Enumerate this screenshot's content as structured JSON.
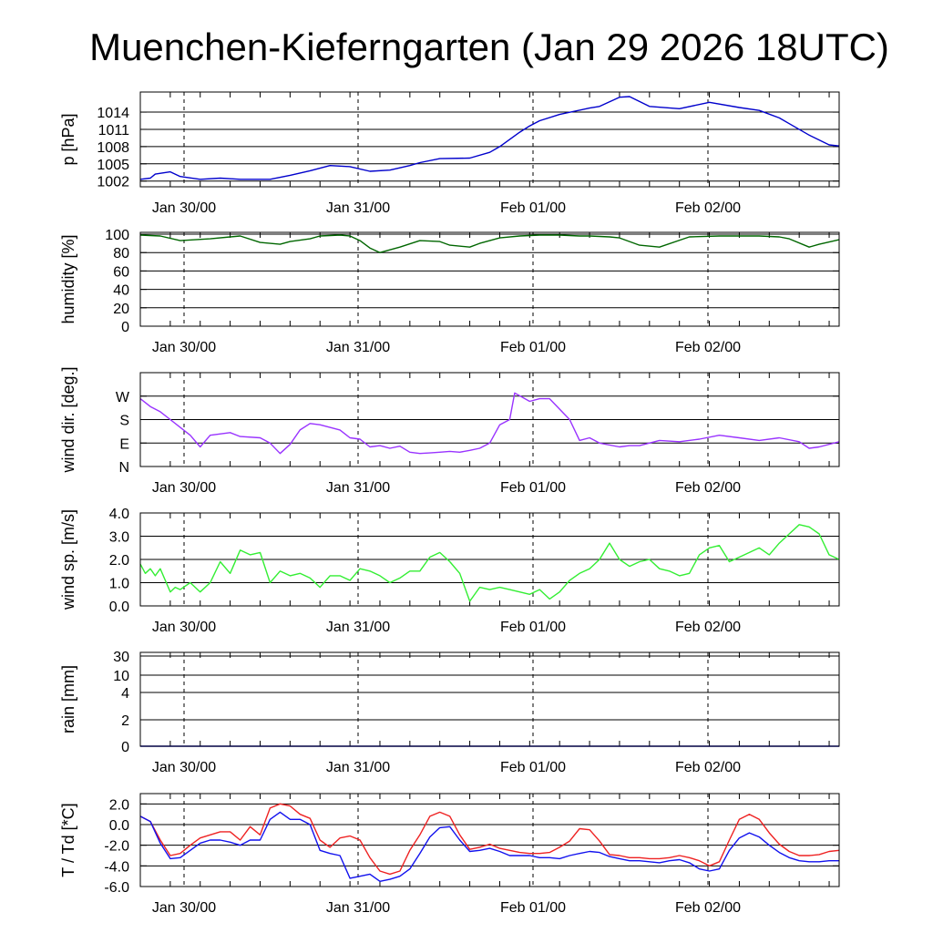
{
  "title": "Muenchen-Kieferngarten (Jan 29 2026 18UTC)",
  "x_tick_labels": [
    "Jan 30/00",
    "Jan 31/00",
    "Feb 01/00",
    "Feb 02/00"
  ],
  "chart_data": [
    {
      "id": "pressure",
      "type": "line",
      "ylabel": "p [hPa]",
      "ylim": [
        1001,
        1017.5
      ],
      "yticks": [
        1002,
        1005,
        1008,
        1011,
        1014
      ],
      "ytick_labels": [
        "1002",
        "1005",
        "1008",
        "1011",
        "1014"
      ],
      "series": [
        {
          "name": "pressure",
          "color": "#0000cc",
          "x": [
            0,
            2,
            3,
            6,
            8,
            12,
            16,
            20,
            26,
            30,
            34,
            38,
            42,
            46,
            50,
            54,
            56,
            60,
            66,
            70,
            72,
            76,
            78,
            80,
            84,
            90,
            92,
            96,
            98,
            102,
            108,
            114,
            120,
            124,
            128,
            130,
            134,
            138,
            140
          ],
          "values": [
            1002.3,
            1002.5,
            1003.2,
            1003.6,
            1002.8,
            1002.3,
            1002.5,
            1002.3,
            1002.3,
            1003.0,
            1003.8,
            1004.7,
            1004.5,
            1003.7,
            1003.9,
            1004.7,
            1005.2,
            1005.9,
            1006.0,
            1007.0,
            1008.0,
            1010.5,
            1011.6,
            1012.5,
            1013.6,
            1014.7,
            1015.0,
            1016.6,
            1016.7,
            1015.0,
            1014.6,
            1015.7,
            1014.8,
            1014.3,
            1013.0,
            1012.0,
            1010.0,
            1008.3,
            1008.1
          ]
        }
      ]
    },
    {
      "id": "humidity",
      "type": "line",
      "ylabel": "humidity [%]",
      "ylim": [
        0,
        102
      ],
      "yticks": [
        0,
        20,
        40,
        60,
        80,
        100
      ],
      "ytick_labels": [
        "0",
        "20",
        "40",
        "60",
        "80",
        "100"
      ],
      "series": [
        {
          "name": "humidity",
          "color": "#006600",
          "x": [
            0,
            4,
            8,
            14,
            18,
            20,
            24,
            28,
            30,
            34,
            36,
            40,
            42,
            44,
            46,
            48,
            52,
            56,
            60,
            62,
            66,
            68,
            72,
            76,
            80,
            84,
            88,
            90,
            94,
            96,
            100,
            104,
            110,
            116,
            120,
            124,
            128,
            130,
            134,
            136,
            140
          ],
          "values": [
            99,
            98,
            93,
            95,
            97,
            98,
            91,
            89,
            92,
            95,
            98,
            99,
            98,
            93,
            85,
            80,
            86,
            93,
            92,
            88,
            86,
            90,
            96,
            98,
            99,
            99,
            98,
            98,
            97,
            96,
            88,
            86,
            97,
            98,
            98,
            98,
            97,
            95,
            86,
            89,
            94
          ]
        }
      ]
    },
    {
      "id": "wind_direction",
      "type": "line",
      "ylabel": "wind dir. [deg.]",
      "ylim": [
        0,
        360
      ],
      "yticks": [
        0,
        90,
        180,
        270
      ],
      "ytick_labels": [
        "N",
        "E",
        "S",
        "W"
      ],
      "series": [
        {
          "name": "wind direction",
          "color": "#9933ff",
          "x": [
            0,
            2,
            4,
            6,
            8,
            10,
            12,
            14,
            18,
            20,
            24,
            26,
            28,
            30,
            32,
            34,
            36,
            40,
            42,
            44,
            46,
            48,
            50,
            52,
            54,
            56,
            58,
            60,
            62,
            64,
            66,
            68,
            70,
            72,
            74,
            75,
            78,
            80,
            82,
            86,
            88,
            90,
            92,
            96,
            98,
            100,
            104,
            108,
            112,
            116,
            120,
            124,
            128,
            132,
            134,
            136,
            140
          ],
          "values": [
            260,
            230,
            210,
            180,
            150,
            120,
            75,
            120,
            130,
            115,
            110,
            90,
            50,
            85,
            140,
            165,
            160,
            140,
            110,
            105,
            75,
            80,
            70,
            78,
            55,
            50,
            52,
            55,
            58,
            55,
            62,
            70,
            90,
            160,
            180,
            282,
            250,
            260,
            260,
            180,
            100,
            110,
            90,
            75,
            80,
            80,
            100,
            95,
            105,
            120,
            110,
            100,
            110,
            95,
            70,
            75,
            95
          ]
        }
      ]
    },
    {
      "id": "wind_speed",
      "type": "line",
      "ylabel": "wind sp. [m/s]",
      "ylim": [
        0,
        4
      ],
      "yticks": [
        0,
        1,
        2,
        3,
        4
      ],
      "ytick_labels": [
        "0.0",
        "1.0",
        "2.0",
        "3.0",
        "4.0"
      ],
      "series": [
        {
          "name": "wind speed",
          "color": "#33ee33",
          "x": [
            0,
            1,
            2,
            3,
            4,
            6,
            7,
            8,
            10,
            12,
            14,
            16,
            18,
            20,
            22,
            24,
            26,
            28,
            30,
            32,
            34,
            36,
            38,
            40,
            42,
            44,
            46,
            48,
            50,
            52,
            54,
            56,
            58,
            60,
            62,
            64,
            66,
            68,
            70,
            72,
            74,
            76,
            78,
            80,
            82,
            84,
            86,
            88,
            90,
            92,
            94,
            96,
            98,
            100,
            102,
            104,
            106,
            108,
            110,
            112,
            114,
            116,
            118,
            120,
            122,
            124,
            126,
            128,
            130,
            132,
            134,
            136,
            138,
            140
          ],
          "values": [
            1.8,
            1.4,
            1.6,
            1.3,
            1.6,
            0.6,
            0.8,
            0.7,
            1.0,
            0.6,
            1.0,
            1.9,
            1.4,
            2.4,
            2.2,
            2.3,
            1.0,
            1.5,
            1.3,
            1.4,
            1.2,
            0.8,
            1.3,
            1.3,
            1.1,
            1.6,
            1.5,
            1.3,
            1.0,
            1.2,
            1.5,
            1.5,
            2.1,
            2.3,
            1.9,
            1.4,
            0.2,
            0.8,
            0.7,
            0.8,
            0.7,
            0.6,
            0.5,
            0.7,
            0.3,
            0.6,
            1.1,
            1.4,
            1.6,
            2.0,
            2.7,
            2.0,
            1.7,
            1.9,
            2.0,
            1.6,
            1.5,
            1.3,
            1.4,
            2.2,
            2.5,
            2.6,
            1.9,
            2.1,
            2.3,
            2.5,
            2.2,
            2.7,
            3.1,
            3.5,
            3.4,
            3.1,
            2.2,
            2.0
          ]
        }
      ]
    },
    {
      "id": "rain",
      "type": "line",
      "ylabel": "rain [mm]",
      "ylim": [
        0,
        32
      ],
      "yticks": [
        0,
        2,
        4,
        10,
        30
      ],
      "ytick_labels": [
        "0",
        "2",
        "4",
        "10",
        "30"
      ],
      "yscale": "pseudo-log",
      "series": [
        {
          "name": "rain",
          "color": "#0000cc",
          "x": [
            0,
            140
          ],
          "values": [
            0,
            0
          ]
        }
      ]
    },
    {
      "id": "temperature",
      "type": "line",
      "ylabel": "T / Td [*C]",
      "ylim": [
        -6,
        3
      ],
      "yticks": [
        -6,
        -4,
        -2,
        0,
        2
      ],
      "ytick_labels": [
        "-6.0",
        "-4.0",
        "-2.0",
        "0.0",
        "2.0"
      ],
      "series": [
        {
          "name": "T",
          "color": "#ee2222",
          "x": [
            0,
            2,
            4,
            6,
            8,
            10,
            12,
            14,
            16,
            18,
            20,
            22,
            24,
            26,
            28,
            30,
            32,
            34,
            36,
            38,
            40,
            42,
            44,
            46,
            48,
            50,
            52,
            54,
            56,
            58,
            60,
            62,
            64,
            66,
            68,
            70,
            72,
            74,
            76,
            78,
            80,
            82,
            84,
            86,
            88,
            90,
            92,
            94,
            96,
            98,
            100,
            102,
            104,
            106,
            108,
            110,
            112,
            114,
            116,
            118,
            120,
            122,
            124,
            126,
            128,
            130,
            132,
            134,
            136,
            138,
            140
          ],
          "values": [
            0.8,
            0.3,
            -1.5,
            -3.0,
            -2.8,
            -2.0,
            -1.3,
            -1.0,
            -0.7,
            -0.7,
            -1.5,
            -0.2,
            -1.0,
            1.6,
            2.0,
            1.8,
            1.0,
            0.6,
            -1.5,
            -2.2,
            -1.3,
            -1.1,
            -1.5,
            -3.2,
            -4.5,
            -4.8,
            -4.5,
            -2.5,
            -1.0,
            0.8,
            1.2,
            0.8,
            -1.0,
            -2.4,
            -2.2,
            -1.9,
            -2.3,
            -2.5,
            -2.7,
            -2.8,
            -2.8,
            -2.7,
            -2.2,
            -1.6,
            -0.4,
            -0.5,
            -1.6,
            -2.9,
            -3.0,
            -3.2,
            -3.2,
            -3.3,
            -3.3,
            -3.2,
            -3.0,
            -3.2,
            -3.5,
            -4.0,
            -3.6,
            -1.5,
            0.5,
            1.0,
            0.5,
            -0.8,
            -1.9,
            -2.6,
            -3.0,
            -3.0,
            -2.9,
            -2.6,
            -2.5
          ]
        },
        {
          "name": "Td",
          "color": "#1111ee",
          "x": [
            0,
            2,
            4,
            6,
            8,
            10,
            12,
            14,
            16,
            18,
            20,
            22,
            24,
            26,
            28,
            30,
            32,
            34,
            36,
            38,
            40,
            42,
            44,
            46,
            48,
            50,
            52,
            54,
            56,
            58,
            60,
            62,
            64,
            66,
            68,
            70,
            72,
            74,
            76,
            78,
            80,
            82,
            84,
            86,
            88,
            90,
            92,
            94,
            96,
            98,
            100,
            102,
            104,
            106,
            108,
            110,
            112,
            114,
            116,
            118,
            120,
            122,
            124,
            126,
            128,
            130,
            132,
            134,
            136,
            138,
            140
          ],
          "values": [
            0.8,
            0.3,
            -1.8,
            -3.3,
            -3.2,
            -2.5,
            -1.8,
            -1.5,
            -1.5,
            -1.7,
            -2.0,
            -1.5,
            -1.5,
            0.5,
            1.2,
            0.5,
            0.5,
            0.0,
            -2.5,
            -2.8,
            -3.0,
            -5.2,
            -5.0,
            -4.8,
            -5.5,
            -5.3,
            -5.0,
            -4.3,
            -2.8,
            -1.2,
            -0.3,
            -0.2,
            -1.5,
            -2.6,
            -2.5,
            -2.3,
            -2.6,
            -3.0,
            -3.0,
            -3.0,
            -3.2,
            -3.2,
            -3.3,
            -3.0,
            -2.8,
            -2.6,
            -2.7,
            -3.1,
            -3.3,
            -3.5,
            -3.5,
            -3.6,
            -3.7,
            -3.5,
            -3.4,
            -3.7,
            -4.3,
            -4.5,
            -4.3,
            -2.5,
            -1.3,
            -0.8,
            -1.2,
            -2.0,
            -2.7,
            -3.2,
            -3.5,
            -3.6,
            -3.6,
            -3.5,
            -3.5
          ]
        }
      ]
    }
  ]
}
